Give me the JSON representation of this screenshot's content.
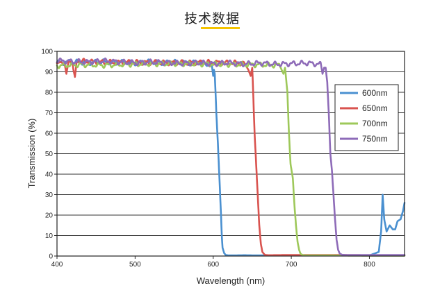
{
  "page": {
    "title": "技术数据"
  },
  "chart_data": {
    "type": "line",
    "title": "",
    "xlabel": "Wavelength (nm)",
    "ylabel": "Transmission (%)",
    "xlim": [
      400,
      845
    ],
    "ylim": [
      0,
      100
    ],
    "xticks": [
      400,
      500,
      600,
      700,
      800
    ],
    "yticks": [
      0,
      10,
      20,
      30,
      40,
      50,
      60,
      70,
      80,
      90,
      100
    ],
    "grid": "horizontal",
    "legend": "top-right",
    "series": [
      {
        "name": "600nm",
        "color": "#4a90d0",
        "x": [
          400,
          420,
          440,
          460,
          480,
          500,
          520,
          540,
          560,
          580,
          598,
          600,
          601,
          602,
          603,
          604,
          606,
          608,
          610,
          611,
          612,
          614,
          616,
          620,
          640,
          660,
          700,
          750,
          800,
          812,
          815,
          817,
          819,
          822,
          826,
          830,
          833,
          836,
          840,
          843,
          845
        ],
        "y": [
          94.5,
          94.8,
          94.5,
          94.9,
          94.6,
          94.4,
          94.8,
          94.5,
          94.7,
          94.3,
          94.0,
          88,
          91,
          89,
          80,
          70,
          55,
          38,
          20,
          10,
          4,
          1.5,
          0.5,
          0.3,
          0.4,
          0.3,
          0.3,
          0.4,
          0.3,
          2,
          12,
          30,
          18,
          12,
          15,
          13,
          13,
          17,
          18,
          22,
          26
        ]
      },
      {
        "name": "650nm",
        "color": "#d9534f",
        "x": [
          400,
          405,
          410,
          412,
          415,
          420,
          421,
          423,
          425,
          430,
          460,
          500,
          550,
          600,
          640,
          645,
          648,
          650,
          651,
          653,
          655,
          657,
          659,
          661,
          663,
          666,
          670,
          700,
          750,
          800,
          845
        ],
        "y": [
          94.2,
          94.8,
          93.5,
          89,
          95.5,
          94,
          91,
          87.5,
          94.5,
          95.2,
          94.6,
          94.6,
          94.4,
          94.6,
          94.2,
          91,
          88,
          92,
          82,
          60,
          45,
          30,
          15,
          6,
          2,
          0.6,
          0.4,
          0.5,
          0.5,
          0.4,
          0.4
        ]
      },
      {
        "name": "700nm",
        "color": "#9ec85a",
        "x": [
          400,
          430,
          460,
          500,
          550,
          600,
          650,
          685,
          690,
          692,
          695,
          697,
          699,
          702,
          704,
          706,
          708,
          710,
          712,
          715,
          720,
          750,
          800,
          845
        ],
        "y": [
          93.0,
          93.5,
          93.2,
          93.8,
          94.0,
          93.7,
          93.5,
          93.2,
          89,
          92,
          80,
          60,
          45,
          38,
          25,
          15,
          7,
          3,
          1,
          0.4,
          0.3,
          0.3,
          0.2,
          0.2
        ]
      },
      {
        "name": "750nm",
        "color": "#8e6bb8",
        "x": [
          400,
          420,
          440,
          460,
          480,
          500,
          520,
          540,
          560,
          580,
          600,
          620,
          640,
          660,
          680,
          700,
          720,
          738,
          740,
          742,
          744,
          746,
          748,
          750,
          752,
          754,
          756,
          758,
          760,
          762,
          765,
          770,
          800,
          845
        ],
        "y": [
          95.5,
          95.0,
          94.8,
          95.3,
          94.9,
          94.4,
          94.8,
          94.5,
          94.1,
          94.5,
          93.9,
          94.4,
          93.8,
          94.3,
          93.7,
          94.0,
          94.3,
          93.6,
          89,
          92,
          92,
          85,
          70,
          50,
          42,
          30,
          18,
          8,
          3,
          1.2,
          0.6,
          0.5,
          0.5,
          0.5
        ]
      }
    ]
  }
}
